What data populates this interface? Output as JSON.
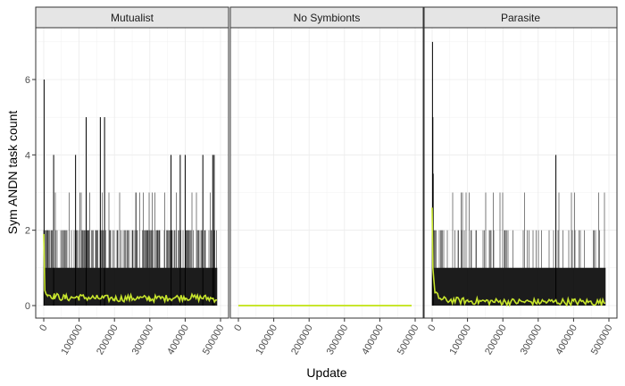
{
  "chart_data": {
    "type": "line",
    "xlabel": "Update",
    "ylabel": "Sym ANDN task count",
    "xlim": [
      0,
      500000
    ],
    "ylim": [
      0,
      7
    ],
    "x_ticks": [
      0,
      100000,
      200000,
      300000,
      400000,
      500000
    ],
    "x_tick_labels": [
      "0",
      "100000",
      "200000",
      "300000",
      "400000",
      "500000"
    ],
    "y_ticks": [
      0,
      2,
      4,
      6
    ],
    "y_tick_labels": [
      "0",
      "2",
      "4",
      "6"
    ],
    "grid": true,
    "legend": "none",
    "colors": {
      "individual": "#000000",
      "mean": "#c8e62d",
      "strip": "#e5e5e5",
      "border": "#333333"
    },
    "panels": [
      {
        "label": "Mutualist",
        "spikes": [
          [
            1000,
            6
          ],
          [
            28000,
            4
          ],
          [
            90000,
            4
          ],
          [
            120000,
            5
          ],
          [
            160000,
            5
          ],
          [
            172000,
            5
          ],
          [
            360000,
            4
          ],
          [
            386000,
            4
          ],
          [
            400000,
            4
          ],
          [
            450000,
            4
          ],
          [
            478000,
            4
          ],
          [
            482000,
            4
          ]
        ],
        "mean": [
          [
            0,
            1.9
          ],
          [
            3000,
            0.4
          ],
          [
            10000,
            0.3
          ],
          [
            30000,
            0.25
          ],
          [
            60000,
            0.2
          ],
          [
            100000,
            0.22
          ],
          [
            150000,
            0.2
          ],
          [
            200000,
            0.18
          ],
          [
            250000,
            0.2
          ],
          [
            300000,
            0.18
          ],
          [
            350000,
            0.2
          ],
          [
            400000,
            0.22
          ],
          [
            450000,
            0.2
          ],
          [
            490000,
            0.18
          ]
        ]
      },
      {
        "label": "No Symbionts",
        "spikes": [],
        "mean": [
          [
            0,
            0
          ],
          [
            490000,
            0
          ]
        ]
      },
      {
        "label": "Parasite",
        "spikes": [
          [
            1000,
            7
          ],
          [
            2000,
            5
          ],
          [
            3000,
            3.5
          ],
          [
            350000,
            4
          ]
        ],
        "mean": [
          [
            0,
            2.6
          ],
          [
            2000,
            1.0
          ],
          [
            8000,
            0.3
          ],
          [
            30000,
            0.15
          ],
          [
            100000,
            0.12
          ],
          [
            200000,
            0.1
          ],
          [
            300000,
            0.1
          ],
          [
            400000,
            0.1
          ],
          [
            490000,
            0.08
          ]
        ]
      }
    ]
  }
}
